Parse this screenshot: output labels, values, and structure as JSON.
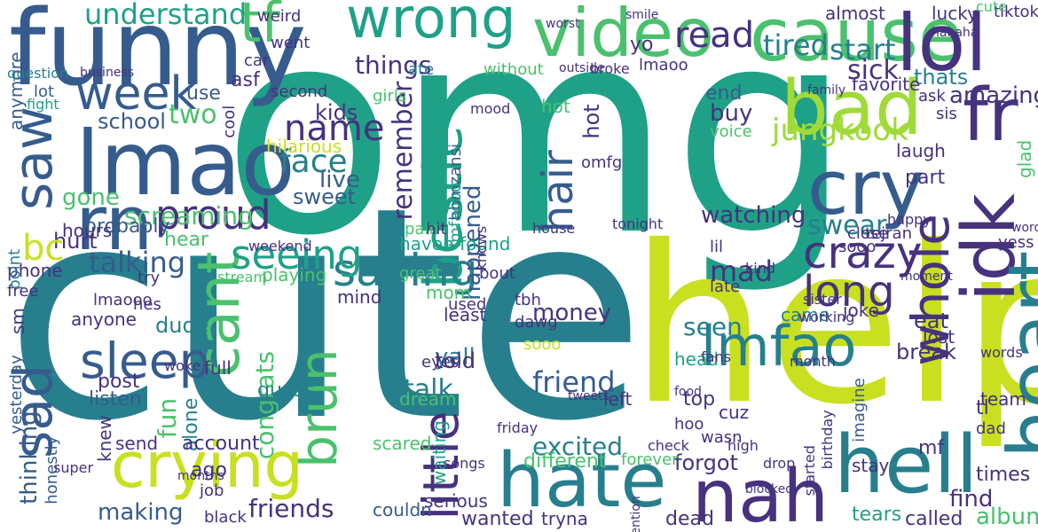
{
  "palette": {
    "dark_purple": "#46327e",
    "navy": "#365c8d",
    "teal_blue": "#277f8e",
    "teal": "#1fa187",
    "green": "#4ac16d",
    "lime": "#a0da39",
    "yellow": "#c8e020",
    "deep_purple": "#3b1c5a"
  },
  "words": [
    {
      "text": "omg",
      "color": "#1fa187"
    },
    {
      "text": "cute",
      "color": "#277f8e"
    },
    {
      "text": "help",
      "color": "#c8e020"
    },
    {
      "text": "funny",
      "color": "#365c8d"
    },
    {
      "text": "cause",
      "color": "#4ac16d"
    },
    {
      "text": "wrong",
      "color": "#1fa187"
    },
    {
      "text": "video",
      "color": "#4ac16d"
    },
    {
      "text": "lol",
      "color": "#46327e"
    },
    {
      "text": "tf",
      "color": "#4ac16d"
    },
    {
      "text": "bad",
      "color": "#a0da39"
    },
    {
      "text": "fr",
      "color": "#46327e"
    },
    {
      "text": "lmao",
      "color": "#365c8d"
    },
    {
      "text": "week",
      "color": "#365c8d"
    },
    {
      "text": "saw",
      "color": "#365c8d"
    },
    {
      "text": "rn",
      "color": "#365c8d"
    },
    {
      "text": "cry",
      "color": "#365c8d"
    },
    {
      "text": "idk",
      "color": "#46327e"
    },
    {
      "text": "heart",
      "color": "#277f8e"
    },
    {
      "text": "whole",
      "color": "#46327e"
    },
    {
      "text": "crazy",
      "color": "#46327e"
    },
    {
      "text": "long",
      "color": "#46327e"
    },
    {
      "text": "crying",
      "color": "#c8e020"
    },
    {
      "text": "hate",
      "color": "#277f8e"
    },
    {
      "text": "nah",
      "color": "#46327e"
    },
    {
      "text": "hell",
      "color": "#277f8e"
    },
    {
      "text": "sleep",
      "color": "#365c8d"
    },
    {
      "text": "sad",
      "color": "#365c8d"
    },
    {
      "text": "brun",
      "color": "#4ac16d"
    },
    {
      "text": "cant",
      "color": "#4ac16d"
    },
    {
      "text": "bestie",
      "color": "#1fa187"
    },
    {
      "text": "lmfao",
      "color": "#277f8e"
    },
    {
      "text": "saying",
      "color": "#277f8e"
    },
    {
      "text": "seeing",
      "color": "#1fa187"
    },
    {
      "text": "proud",
      "color": "#46327e"
    },
    {
      "text": "little",
      "color": "#46327e"
    },
    {
      "text": "jungkook",
      "color": "#a0da39"
    },
    {
      "text": "hair",
      "color": "#365c8d"
    },
    {
      "text": "read",
      "color": "#46327e"
    },
    {
      "text": "tired",
      "color": "#277f8e"
    },
    {
      "text": "start",
      "color": "#277f8e"
    },
    {
      "text": "sick",
      "color": "#46327e"
    },
    {
      "text": "name",
      "color": "#46327e"
    },
    {
      "text": "face",
      "color": "#277f8e"
    },
    {
      "text": "understand",
      "color": "#1fa187"
    },
    {
      "text": "things",
      "color": "#46327e"
    },
    {
      "text": "remember",
      "color": "#46327e"
    },
    {
      "text": "happened",
      "color": "#365c8d"
    },
    {
      "text": "watching",
      "color": "#46327e"
    },
    {
      "text": "swear",
      "color": "#277f8e"
    },
    {
      "text": "mad",
      "color": "#46327e"
    },
    {
      "text": "seen",
      "color": "#277f8e"
    },
    {
      "text": "talking",
      "color": "#365c8d"
    },
    {
      "text": "screaming",
      "color": "#4ac16d"
    },
    {
      "text": "friend",
      "color": "#365c8d"
    },
    {
      "text": "talk",
      "color": "#277f8e"
    },
    {
      "text": "excited",
      "color": "#277f8e"
    },
    {
      "text": "making",
      "color": "#365c8d"
    },
    {
      "text": "friends",
      "color": "#46327e"
    },
    {
      "text": "wanted",
      "color": "#46327e"
    },
    {
      "text": "forgot",
      "color": "#46327e"
    },
    {
      "text": "album",
      "color": "#4ac16d"
    },
    {
      "text": "thinking",
      "color": "#365c8d"
    },
    {
      "text": "amazing",
      "color": "#46327e"
    },
    {
      "text": "congrats",
      "color": "#4ac16d"
    },
    {
      "text": "yall",
      "color": "#277f8e"
    },
    {
      "text": "money",
      "color": "#46327e"
    },
    {
      "text": "told",
      "color": "#46327e"
    },
    {
      "text": "hurt",
      "color": "#46327e"
    },
    {
      "text": "gone",
      "color": "#4ac16d"
    },
    {
      "text": "kids",
      "color": "#46327e"
    },
    {
      "text": "school",
      "color": "#365c8d"
    },
    {
      "text": "two",
      "color": "#4ac16d"
    },
    {
      "text": "live",
      "color": "#365c8d"
    },
    {
      "text": "sweet",
      "color": "#365c8d"
    },
    {
      "text": "buy",
      "color": "#46327e"
    },
    {
      "text": "end",
      "color": "#365c8d"
    },
    {
      "text": "hot",
      "color": "#46327e"
    },
    {
      "text": "laugh",
      "color": "#46327e"
    },
    {
      "text": "part",
      "color": "#46327e"
    },
    {
      "text": "thats",
      "color": "#277f8e"
    },
    {
      "text": "favorite",
      "color": "#46327e"
    },
    {
      "text": "eat",
      "color": "#46327e"
    },
    {
      "text": "lost",
      "color": "#46327e"
    },
    {
      "text": "break",
      "color": "#46327e"
    },
    {
      "text": "find",
      "color": "#46327e"
    },
    {
      "text": "times",
      "color": "#46327e"
    },
    {
      "text": "called",
      "color": "#46327e"
    },
    {
      "text": "tears",
      "color": "#1fa187"
    },
    {
      "text": "dead",
      "color": "#46327e"
    },
    {
      "text": "different",
      "color": "#4ac16d"
    },
    {
      "text": "crying",
      "color": "#c8e020"
    },
    {
      "text": "lucky",
      "color": "#46327e"
    },
    {
      "text": "almost",
      "color": "#46327e"
    },
    {
      "text": "probably",
      "color": "#365c8d"
    },
    {
      "text": "dude",
      "color": "#277f8e"
    },
    {
      "text": "post",
      "color": "#46327e"
    },
    {
      "text": "listen",
      "color": "#365c8d"
    },
    {
      "text": "fun",
      "color": "#4ac16d"
    },
    {
      "text": "alone",
      "color": "#277f8e"
    },
    {
      "text": "guess",
      "color": "#277f8e"
    },
    {
      "text": "account",
      "color": "#46327e"
    },
    {
      "text": "send",
      "color": "#46327e"
    },
    {
      "text": "knew",
      "color": "#46327e"
    },
    {
      "text": "scared",
      "color": "#4ac16d"
    },
    {
      "text": "waiting",
      "color": "#1fa187"
    },
    {
      "text": "serious",
      "color": "#46327e"
    },
    {
      "text": "tryna",
      "color": "#46327e"
    },
    {
      "text": "couldn",
      "color": "#365c8d"
    },
    {
      "text": "left",
      "color": "#46327e"
    },
    {
      "text": "dream",
      "color": "#4ac16d"
    },
    {
      "text": "top",
      "color": "#46327e"
    },
    {
      "text": "cuz",
      "color": "#46327e"
    },
    {
      "text": "wasn",
      "color": "#46327e"
    },
    {
      "text": "head",
      "color": "#1fa187"
    },
    {
      "text": "came",
      "color": "#277f8e"
    },
    {
      "text": "joke",
      "color": "#46327e"
    },
    {
      "text": "yess",
      "color": "#46327e"
    },
    {
      "text": "team",
      "color": "#46327e"
    },
    {
      "text": "tl",
      "color": "#46327e"
    },
    {
      "text": "dad",
      "color": "#46327e"
    },
    {
      "text": "mf",
      "color": "#46327e"
    },
    {
      "text": "stay",
      "color": "#46327e"
    },
    {
      "text": "forever",
      "color": "#4ac16d"
    },
    {
      "text": "haven found",
      "color": "#1fa187"
    },
    {
      "text": "pain",
      "color": "#4ac16d"
    },
    {
      "text": "hit",
      "color": "#46327e"
    },
    {
      "text": "hear",
      "color": "#4ac16d"
    },
    {
      "text": "yo",
      "color": "#46327e"
    },
    {
      "text": "ask",
      "color": "#46327e"
    },
    {
      "text": "use",
      "color": "#365c8d"
    },
    {
      "text": "asf",
      "color": "#46327e"
    },
    {
      "text": "second",
      "color": "#46327e"
    },
    {
      "text": "anymore",
      "color": "#365c8d"
    },
    {
      "text": "lmaooo",
      "color": "#46327e"
    },
    {
      "text": "phone",
      "color": "#46327e"
    },
    {
      "text": "free",
      "color": "#46327e"
    },
    {
      "text": "playing",
      "color": "#4ac16d"
    },
    {
      "text": "mom",
      "color": "#4ac16d"
    },
    {
      "text": "tbh",
      "color": "#46327e"
    },
    {
      "text": "dawg",
      "color": "#46327e"
    },
    {
      "text": "hilarious",
      "color": "#c8e020"
    },
    {
      "text": "close",
      "color": "#46327e"
    },
    {
      "text": "sooo",
      "color": "#46327e"
    },
    {
      "text": "late",
      "color": "#46327e"
    },
    {
      "text": "voice",
      "color": "#4ac16d"
    },
    {
      "text": "omfg",
      "color": "#46327e"
    },
    {
      "text": "bbmzansi",
      "color": "#365c8d"
    },
    {
      "text": "lmfaooo",
      "color": "#1fa187"
    },
    {
      "text": "bc",
      "color": "#c8e020"
    },
    {
      "text": "sm",
      "color": "#46327e"
    },
    {
      "text": "hours",
      "color": "#46327e"
    },
    {
      "text": "anyone",
      "color": "#46327e"
    },
    {
      "text": "yesterday",
      "color": "#365c8d"
    },
    {
      "text": "eyes",
      "color": "#46327e"
    },
    {
      "text": "used",
      "color": "#46327e"
    },
    {
      "text": "least",
      "color": "#46327e"
    },
    {
      "text": "mind",
      "color": "#46327e"
    },
    {
      "text": "ago",
      "color": "#46327e"
    },
    {
      "text": "job",
      "color": "#46327e"
    },
    {
      "text": "black",
      "color": "#46327e"
    },
    {
      "text": "hes",
      "color": "#46327e"
    },
    {
      "text": "hoo",
      "color": "#46327e"
    },
    {
      "text": "tiktok",
      "color": "#46327e"
    },
    {
      "text": "imagine",
      "color": "#365c8d"
    },
    {
      "text": "full",
      "color": "#46327e"
    },
    {
      "text": "tejran",
      "color": "#46327e"
    },
    {
      "text": "girls",
      "color": "#4ac16d"
    },
    {
      "text": "ate",
      "color": "#277f8e"
    },
    {
      "text": "weird",
      "color": "#46327e"
    },
    {
      "text": "went",
      "color": "#46327e"
    },
    {
      "text": "car",
      "color": "#46327e"
    },
    {
      "text": "fight",
      "color": "#1fa187"
    },
    {
      "text": "lot",
      "color": "#365c8d"
    },
    {
      "text": "cool",
      "color": "#46327e"
    },
    {
      "text": "question",
      "color": "#277f8e"
    },
    {
      "text": "cute",
      "color": "#4ac16d"
    },
    {
      "text": "glad",
      "color": "#4ac16d"
    },
    {
      "text": "sis",
      "color": "#46327e"
    },
    {
      "text": "hot",
      "color": "#4ac16d"
    },
    {
      "text": "point",
      "color": "#277f8e"
    },
    {
      "text": "try",
      "color": "#46327e"
    },
    {
      "text": "bout",
      "color": "#46327e"
    },
    {
      "text": "great",
      "color": "#4ac16d"
    },
    {
      "text": "kind",
      "color": "#46327e"
    },
    {
      "text": "lil",
      "color": "#46327e"
    },
    {
      "text": "tonight",
      "color": "#46327e"
    },
    {
      "text": "happy",
      "color": "#46327e"
    },
    {
      "text": "sooo",
      "color": "#c8e020"
    },
    {
      "text": "word",
      "color": "#46327e"
    },
    {
      "text": "words",
      "color": "#46327e"
    },
    {
      "text": "house",
      "color": "#46327e"
    },
    {
      "text": "knows",
      "color": "#46327e"
    },
    {
      "text": "stream",
      "color": "#4ac16d"
    },
    {
      "text": "fans",
      "color": "#46327e"
    },
    {
      "text": "month",
      "color": "#46327e"
    },
    {
      "text": "high",
      "color": "#46327e"
    },
    {
      "text": "check",
      "color": "#46327e"
    },
    {
      "text": "drop",
      "color": "#46327e"
    },
    {
      "text": "friday",
      "color": "#46327e"
    },
    {
      "text": "honestly",
      "color": "#365c8d"
    },
    {
      "text": "super",
      "color": "#46327e"
    },
    {
      "text": "woke",
      "color": "#46327e"
    },
    {
      "text": "weekend",
      "color": "#46327e"
    },
    {
      "text": "mood",
      "color": "#46327e"
    },
    {
      "text": "hahaha",
      "color": "#46327e"
    },
    {
      "text": "worst",
      "color": "#46327e"
    },
    {
      "text": "smile",
      "color": "#46327e"
    },
    {
      "text": "lmaoo",
      "color": "#46327e"
    },
    {
      "text": "broke",
      "color": "#46327e"
    },
    {
      "text": "without",
      "color": "#4ac16d"
    },
    {
      "text": "business",
      "color": "#46327e"
    },
    {
      "text": "outside",
      "color": "#46327e"
    },
    {
      "text": "family",
      "color": "#46327e"
    },
    {
      "text": "moment",
      "color": "#46327e"
    },
    {
      "text": "songs",
      "color": "#46327e"
    },
    {
      "text": "sister",
      "color": "#46327e"
    },
    {
      "text": "working",
      "color": "#46327e"
    },
    {
      "text": "tweets",
      "color": "#46327e"
    },
    {
      "text": "attention",
      "color": "#46327e"
    },
    {
      "text": "birthday",
      "color": "#46327e"
    },
    {
      "text": "started",
      "color": "#46327e"
    },
    {
      "text": "blocked",
      "color": "#46327e"
    },
    {
      "text": "months",
      "color": "#46327e"
    },
    {
      "text": "food",
      "color": "#46327e"
    }
  ]
}
